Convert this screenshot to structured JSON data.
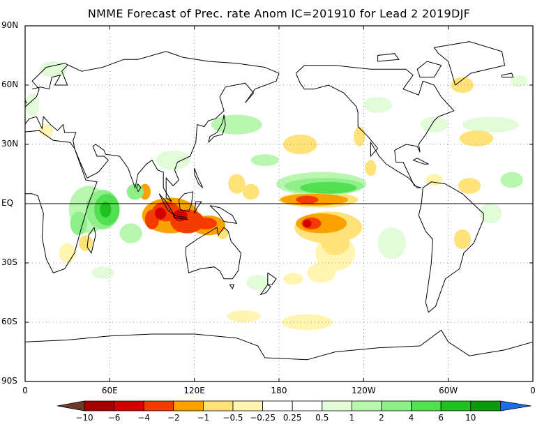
{
  "title": "NMME Forecast of Prec. rate Anom IC=201910 for Lead 2 2019DJF",
  "axes": {
    "y_ticks": [
      {
        "label": "90N",
        "lat": 90
      },
      {
        "label": "60N",
        "lat": 60
      },
      {
        "label": "30N",
        "lat": 30
      },
      {
        "label": "EQ",
        "lat": 0
      },
      {
        "label": "30S",
        "lat": -30
      },
      {
        "label": "60S",
        "lat": -60
      },
      {
        "label": "90S",
        "lat": -90
      }
    ],
    "x_ticks": [
      {
        "label": "0",
        "lon": 0
      },
      {
        "label": "60E",
        "lon": 60
      },
      {
        "label": "120E",
        "lon": 120
      },
      {
        "label": "180",
        "lon": 180
      },
      {
        "label": "120W",
        "lon": 240
      },
      {
        "label": "60W",
        "lon": 300
      },
      {
        "label": "0",
        "lon": 360
      }
    ]
  },
  "colorbar": {
    "colors": [
      "#6b3a2a",
      "#a50000",
      "#d40000",
      "#f53c00",
      "#f9a200",
      "#ffe27a",
      "#fff5b0",
      "#ffffff",
      "#ffffff",
      "#e2fbd8",
      "#b9f6b0",
      "#8ff08a",
      "#52e052",
      "#20c020",
      "#0a9a0a",
      "#1a6ee8"
    ],
    "labels": [
      "−10",
      "−6",
      "−4",
      "−2",
      "−1",
      "−0.5",
      "−0.25",
      "0.25",
      "0.5",
      "1",
      "2",
      "4",
      "6",
      "10"
    ]
  },
  "anomalies": [
    {
      "lon": 150,
      "lat": 10,
      "rx": 6,
      "ry": 5,
      "v": -0.5
    },
    {
      "lon": 160,
      "lat": 6,
      "rx": 6,
      "ry": 4,
      "v": -0.5
    },
    {
      "lon": 103,
      "lat": -6,
      "rx": 20,
      "ry": 9,
      "v": -1
    },
    {
      "lon": 115,
      "lat": -9,
      "rx": 12,
      "ry": 6,
      "v": -2
    },
    {
      "lon": 100,
      "lat": -4,
      "rx": 10,
      "ry": 5,
      "v": -2
    },
    {
      "lon": 90,
      "lat": -8,
      "rx": 5,
      "ry": 5,
      "v": -2
    },
    {
      "lon": 85,
      "lat": 6,
      "rx": 4,
      "ry": 4,
      "v": -1
    },
    {
      "lon": 130,
      "lat": -11,
      "rx": 12,
      "ry": 5,
      "v": -1
    },
    {
      "lon": 128,
      "lat": -10,
      "rx": 8,
      "ry": 3,
      "v": -2
    },
    {
      "lon": 140,
      "lat": -15,
      "rx": 4,
      "ry": 3,
      "v": -0.5
    },
    {
      "lon": 110,
      "lat": -6,
      "rx": 5,
      "ry": 3,
      "v": -4
    },
    {
      "lon": 96,
      "lat": -5,
      "rx": 4,
      "ry": 3,
      "v": -4
    },
    {
      "lon": 208,
      "lat": 2,
      "rx": 28,
      "ry": 4,
      "v": -0.5
    },
    {
      "lon": 205,
      "lat": 2,
      "rx": 24,
      "ry": 3,
      "v": -1
    },
    {
      "lon": 200,
      "lat": 2,
      "rx": 8,
      "ry": 2,
      "v": -2
    },
    {
      "lon": 215,
      "lat": -12,
      "rx": 24,
      "ry": 8,
      "v": -0.5
    },
    {
      "lon": 210,
      "lat": -10,
      "rx": 18,
      "ry": 5,
      "v": -1
    },
    {
      "lon": 203,
      "lat": -10,
      "rx": 7,
      "ry": 3,
      "v": -2
    },
    {
      "lon": 200,
      "lat": -10,
      "rx": 3,
      "ry": 2,
      "v": -4
    },
    {
      "lon": 220,
      "lat": -25,
      "rx": 14,
      "ry": 9,
      "v": -0.25
    },
    {
      "lon": 210,
      "lat": -35,
      "rx": 10,
      "ry": 5,
      "v": -0.25
    },
    {
      "lon": 220,
      "lat": -20,
      "rx": 10,
      "ry": 6,
      "v": -0.5
    },
    {
      "lon": 195,
      "lat": 30,
      "rx": 12,
      "ry": 5,
      "v": -0.5
    },
    {
      "lon": 237,
      "lat": 34,
      "rx": 4,
      "ry": 5,
      "v": -0.5
    },
    {
      "lon": 245,
      "lat": 18,
      "rx": 4,
      "ry": 4,
      "v": -0.5
    },
    {
      "lon": 315,
      "lat": 9,
      "rx": 8,
      "ry": 4,
      "v": -0.5
    },
    {
      "lon": 290,
      "lat": 12,
      "rx": 6,
      "ry": 3,
      "v": -0.25
    },
    {
      "lon": 320,
      "lat": 33,
      "rx": 12,
      "ry": 4,
      "v": -0.5
    },
    {
      "lon": 310,
      "lat": 60,
      "rx": 8,
      "ry": 4,
      "v": -0.5
    },
    {
      "lon": 310,
      "lat": -18,
      "rx": 6,
      "ry": 5,
      "v": -0.5
    },
    {
      "lon": 43,
      "lat": -20,
      "rx": 5,
      "ry": 4,
      "v": -0.5
    },
    {
      "lon": 30,
      "lat": -25,
      "rx": 6,
      "ry": 5,
      "v": -0.25
    },
    {
      "lon": 190,
      "lat": -38,
      "rx": 7,
      "ry": 3,
      "v": -0.25
    },
    {
      "lon": 200,
      "lat": -60,
      "rx": 18,
      "ry": 4,
      "v": -0.25
    },
    {
      "lon": 155,
      "lat": -57,
      "rx": 12,
      "ry": 3,
      "v": -0.25
    },
    {
      "lon": 15,
      "lat": 37,
      "rx": 5,
      "ry": 3,
      "v": -0.25
    },
    {
      "lon": 45,
      "lat": -3,
      "rx": 14,
      "ry": 12,
      "v": 0.5
    },
    {
      "lon": 55,
      "lat": -3,
      "rx": 12,
      "ry": 10,
      "v": 1
    },
    {
      "lon": 58,
      "lat": -3,
      "rx": 9,
      "ry": 8,
      "v": 2
    },
    {
      "lon": 57,
      "lat": -3,
      "rx": 4,
      "ry": 4,
      "v": 4
    },
    {
      "lon": 38,
      "lat": -10,
      "rx": 6,
      "ry": 6,
      "v": 1
    },
    {
      "lon": 78,
      "lat": 6,
      "rx": 6,
      "ry": 4,
      "v": 1
    },
    {
      "lon": 75,
      "lat": -15,
      "rx": 8,
      "ry": 5,
      "v": 0.5
    },
    {
      "lon": 210,
      "lat": 10,
      "rx": 32,
      "ry": 6,
      "v": 0.5
    },
    {
      "lon": 212,
      "lat": 9,
      "rx": 28,
      "ry": 4,
      "v": 1
    },
    {
      "lon": 215,
      "lat": 8,
      "rx": 20,
      "ry": 3,
      "v": 2
    },
    {
      "lon": 150,
      "lat": 40,
      "rx": 18,
      "ry": 5,
      "v": 0.5
    },
    {
      "lon": 105,
      "lat": 22,
      "rx": 12,
      "ry": 5,
      "v": 0.25
    },
    {
      "lon": 170,
      "lat": 22,
      "rx": 10,
      "ry": 3,
      "v": 0.5
    },
    {
      "lon": 290,
      "lat": 40,
      "rx": 10,
      "ry": 4,
      "v": 0.25
    },
    {
      "lon": 330,
      "lat": 40,
      "rx": 20,
      "ry": 4,
      "v": 0.25
    },
    {
      "lon": 350,
      "lat": 62,
      "rx": 6,
      "ry": 3,
      "v": 0.25
    },
    {
      "lon": 345,
      "lat": 12,
      "rx": 8,
      "ry": 4,
      "v": 0.5
    },
    {
      "lon": 330,
      "lat": -5,
      "rx": 8,
      "ry": 5,
      "v": 0.25
    },
    {
      "lon": 260,
      "lat": -20,
      "rx": 10,
      "ry": 8,
      "v": 0.25
    },
    {
      "lon": 250,
      "lat": 50,
      "rx": 10,
      "ry": 4,
      "v": 0.25
    },
    {
      "lon": 20,
      "lat": 68,
      "rx": 10,
      "ry": 4,
      "v": 0.25
    },
    {
      "lon": 5,
      "lat": 50,
      "rx": 5,
      "ry": 6,
      "v": 0.25
    },
    {
      "lon": 165,
      "lat": -40,
      "rx": 8,
      "ry": 4,
      "v": 0.25
    },
    {
      "lon": 55,
      "lat": -35,
      "rx": 8,
      "ry": 3,
      "v": 0.25
    }
  ]
}
